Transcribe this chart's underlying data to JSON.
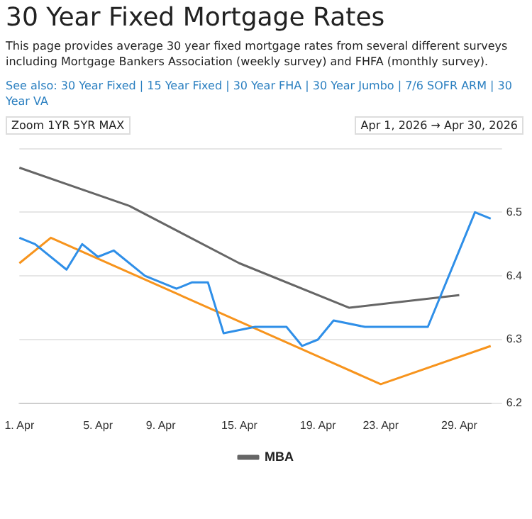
{
  "chart_data": {
    "type": "line",
    "title": "30 Year Fixed Mortgage Rates",
    "subtitle": "This page provides average 30 year fixed mortgage rates from several different surveys including Mortgage Bankers Association (weekly survey) and FHFA (monthly survey).",
    "annotations": [
      "See also: 30 Year Fixed | 15 Year Fixed | 30 Year FHA | 30 Year Jumbo | 7/6 SOFR ARM | 30 Year VA",
      "Zoom 1YR 5YR MAX",
      "Apr 1, 2026 → Apr 30, 2026"
    ],
    "categories": [
      "1. Apr",
      null,
      null,
      null,
      null,
      "5. Apr",
      null,
      null,
      null,
      "9. Apr",
      null,
      null,
      null,
      null,
      "15. Apr",
      null,
      null,
      null,
      null,
      "19. Apr",
      null,
      null,
      null,
      "23. Apr",
      null,
      null,
      null,
      null,
      "29. Apr",
      null,
      null
    ],
    "series": [
      {
        "color": "#2f8fe8",
        "values": [
          6.46,
          6.45,
          null,
          6.41,
          6.45,
          6.43,
          6.44,
          null,
          6.4,
          null,
          6.38,
          6.39,
          6.39,
          6.31,
          null,
          6.32,
          null,
          6.32,
          6.29,
          6.3,
          6.33,
          null,
          6.32,
          null,
          null,
          null,
          6.32,
          null,
          null,
          6.5,
          6.49
        ]
      },
      {
        "name": "MBA",
        "color": "#666666",
        "values": [
          6.57,
          null,
          null,
          null,
          null,
          null,
          null,
          6.51,
          null,
          null,
          null,
          null,
          null,
          null,
          6.42,
          null,
          null,
          null,
          null,
          null,
          null,
          6.35,
          null,
          null,
          null,
          null,
          null,
          null,
          6.37,
          null,
          null
        ]
      },
      {
        "color": "#f7941d",
        "values": [
          6.42,
          null,
          6.46,
          null,
          null,
          null,
          null,
          null,
          null,
          null,
          null,
          null,
          null,
          null,
          null,
          null,
          null,
          null,
          null,
          null,
          null,
          null,
          null,
          6.23,
          null,
          null,
          null,
          null,
          null,
          null,
          6.29
        ]
      }
    ],
    "ylim": [
      6.2,
      6.6
    ],
    "yticks": [
      6.2,
      6.3,
      6.4,
      6.5,
      {
        "value": 6.6,
        "label": null
      }
    ],
    "grid": "y",
    "legend": "bottom",
    "marker": "none",
    "line_style": "solid"
  }
}
